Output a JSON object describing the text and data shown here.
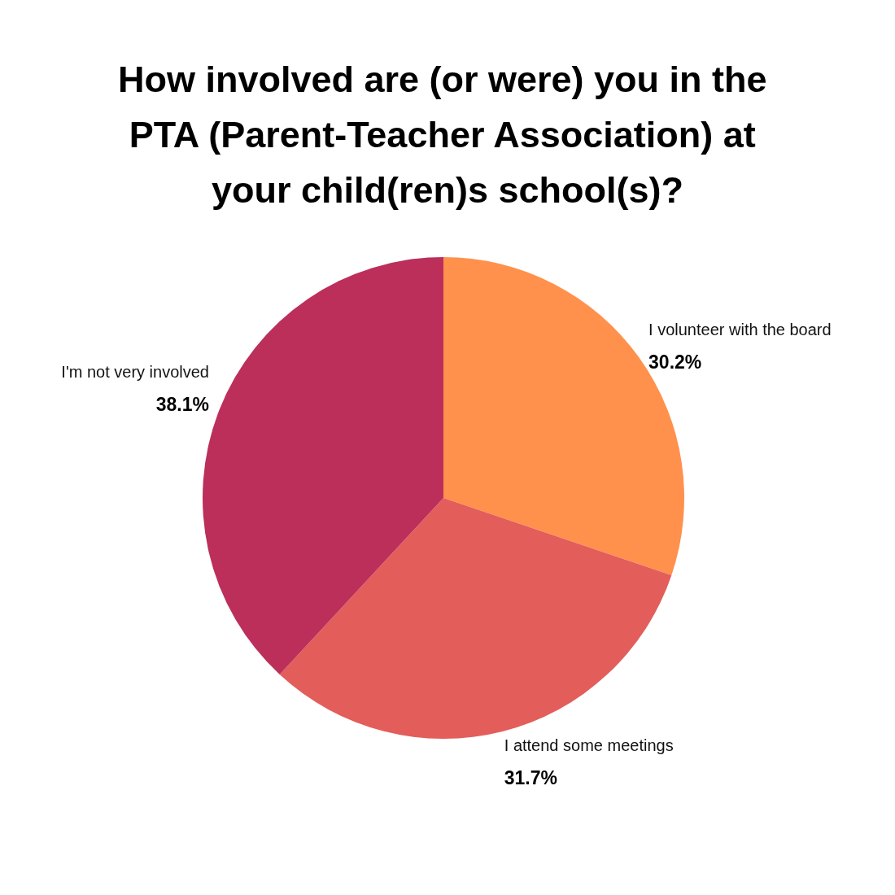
{
  "chart_data": {
    "type": "pie",
    "title": "How involved are (or were) you in the PTA (Parent-Teacher Association) at your child(ren)s school(s)?",
    "categories": [
      "I volunteer with the board",
      "I attend some meetings",
      "I'm not very involved"
    ],
    "values": [
      30.2,
      31.7,
      38.1
    ],
    "colors": [
      "#ff914d",
      "#e35d5a",
      "#bb2f5a"
    ],
    "value_labels": [
      "30.2%",
      "31.7%",
      "38.1%"
    ]
  }
}
